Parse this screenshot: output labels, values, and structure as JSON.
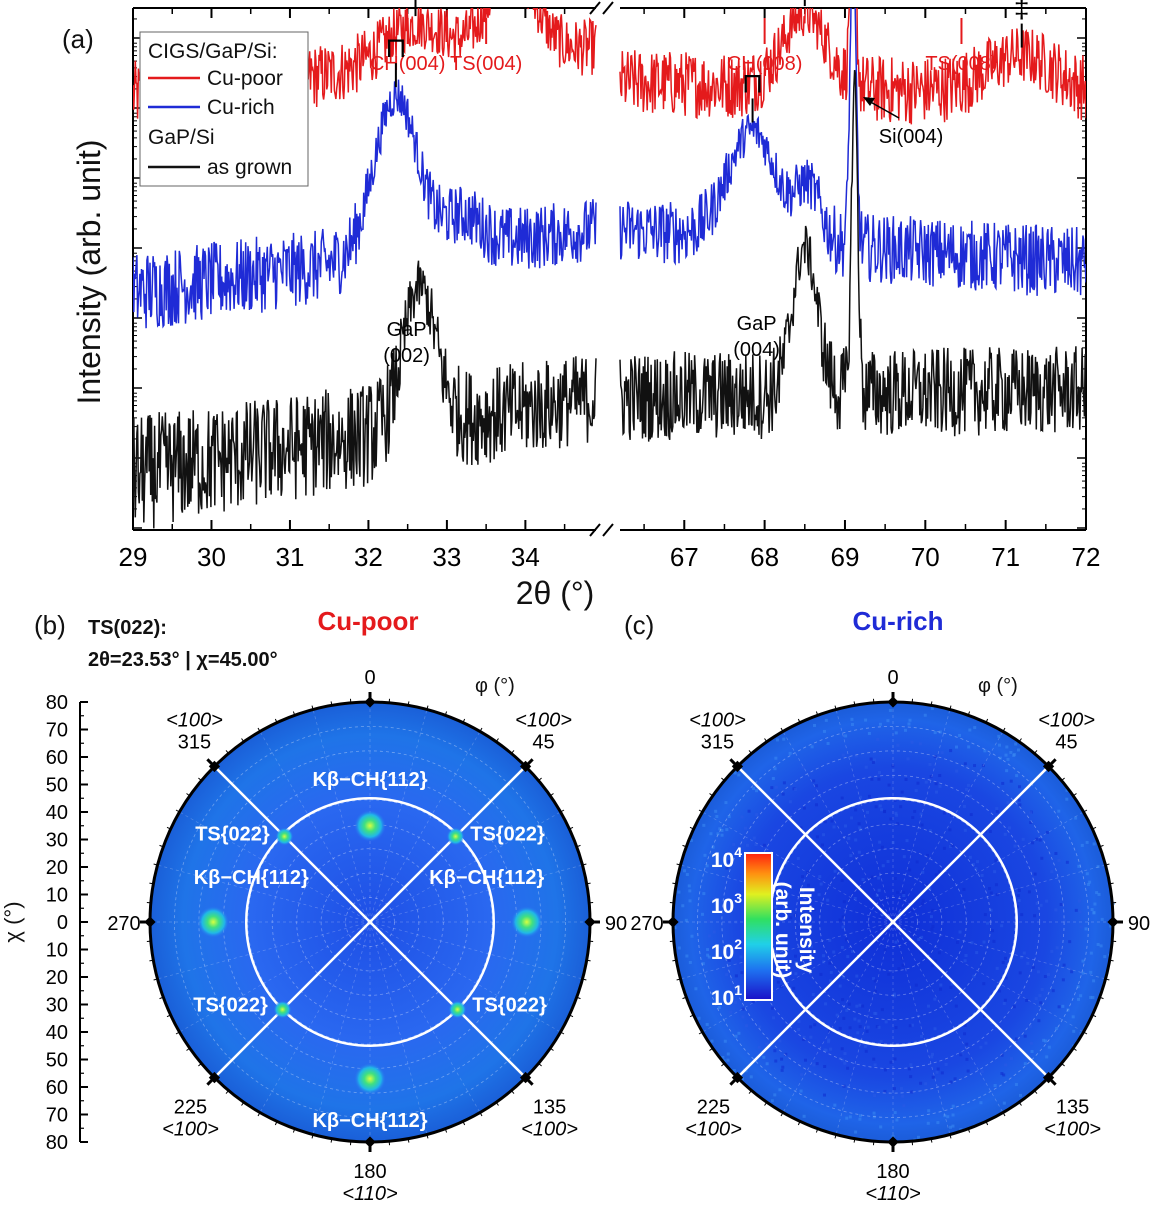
{
  "panels": {
    "a": {
      "label": "(a)"
    },
    "b": {
      "label": "(b)",
      "title": "Cu-poor",
      "note_line1": "TS(022):",
      "note_line2": "2θ=23.53° | χ=45.00°"
    },
    "c": {
      "label": "(c)",
      "title": "Cu-rich"
    }
  },
  "colors": {
    "cu_poor": "#e41a1c",
    "cu_rich": "#1f2bd6",
    "as_grown": "#111111"
  },
  "chart_data": [
    {
      "type": "line",
      "ylabel": "Intensity (arb. unit)",
      "xlabel": "2θ (°)",
      "x_scale": "broken",
      "x_segments": [
        [
          29,
          34.9
        ],
        [
          66.2,
          72
        ]
      ],
      "xticks_left": [
        "29",
        "30",
        "31",
        "32",
        "33",
        "34"
      ],
      "xticks_right": [
        "67",
        "68",
        "69",
        "70",
        "71",
        "72"
      ],
      "y_scale": "log",
      "legend": {
        "position": "top-left",
        "group1": "CIGS/GaP/Si:",
        "group2": "GaP/Si",
        "entries": [
          {
            "name": "Cu-poor",
            "color": "#e41a1c"
          },
          {
            "name": "Cu-rich",
            "color": "#1f2bd6"
          },
          {
            "name": "as grown",
            "color": "#111111"
          }
        ]
      },
      "reference_marks": [
        {
          "label": "CH(004)",
          "x": 32.5
        },
        {
          "label": "TS(004)",
          "x": 33.5
        },
        {
          "label": "CH(008)",
          "x": 68.0
        },
        {
          "label": "TS(008)",
          "x": 70.45
        }
      ],
      "annotations": [
        {
          "text": "GaP",
          "text2": "(002)",
          "x": 32.55
        },
        {
          "text": "GaP",
          "text2": "(004)",
          "x": 67.9
        },
        {
          "text": "Si(004)",
          "x": 69.1
        }
      ],
      "series": [
        {
          "name": "Cu-poor",
          "color": "#e41a1c",
          "base": 5.0,
          "noise": 0.28,
          "peaks": [
            [
              32.6,
              0.75,
              0.6
            ],
            [
              33.82,
              0.55,
              1.15
            ],
            [
              68.5,
              0.5,
              1.05
            ],
            [
              69.1,
              0.06,
              3.0
            ],
            [
              71.2,
              0.8,
              0.55
            ]
          ],
          "bg_left": [
            [
              29.0,
              0.0
            ],
            [
              34.9,
              0.7
            ]
          ],
          "bg_right": [
            [
              66.2,
              0.2
            ],
            [
              72.0,
              0.0
            ]
          ]
        },
        {
          "name": "Cu-rich",
          "color": "#1f2bd6",
          "base": 2.5,
          "noise": 0.3,
          "peaks": [
            [
              32.35,
              0.5,
              2.3
            ],
            [
              33.2,
              0.45,
              0.45
            ],
            [
              67.85,
              0.55,
              1.55
            ],
            [
              68.55,
              0.28,
              0.75
            ],
            [
              69.1,
              0.07,
              4.2
            ]
          ],
          "bg_left": [
            [
              29.0,
              -0.3
            ],
            [
              34.9,
              0.6
            ]
          ],
          "bg_right": [
            [
              66.2,
              0.6
            ],
            [
              72.0,
              0.1
            ]
          ]
        },
        {
          "name": "as grown",
          "color": "#111111",
          "base": 0.8,
          "noise": 0.35,
          "peaks": [
            [
              32.65,
              0.38,
              2.0
            ],
            [
              68.5,
              0.28,
              2.1
            ],
            [
              69.12,
              0.07,
              4.5
            ]
          ],
          "bg_left": [
            [
              29.0,
              -1.2
            ],
            [
              34.9,
              -0.1
            ]
          ],
          "bg_right": [
            [
              66.2,
              -0.1
            ],
            [
              72.0,
              0.0
            ]
          ]
        }
      ],
      "peak_markers": [
        {
          "series": "Cu-poor",
          "x": 32.6,
          "symbol": "⊓"
        },
        {
          "series": "Cu-poor",
          "x": 33.82,
          "symbol": "‡"
        },
        {
          "series": "Cu-poor",
          "x": 68.5,
          "symbol": "⊓"
        },
        {
          "series": "Cu-poor",
          "x": 71.2,
          "symbol": "‡"
        },
        {
          "series": "Cu-rich",
          "x": 32.35,
          "symbol": "⊓"
        },
        {
          "series": "Cu-rich",
          "x": 67.85,
          "symbol": "⊓"
        }
      ]
    },
    {
      "type": "heatmap",
      "projection": "polar",
      "title": "Cu-poor",
      "chi_axis": {
        "label": "χ (°)",
        "ticks": [
          "80",
          "70",
          "60",
          "50",
          "40",
          "30",
          "20",
          "10",
          "0",
          "10",
          "20",
          "30",
          "40",
          "50",
          "60",
          "70",
          "80"
        ]
      },
      "phi_label": "φ (°)",
      "phi_ticks": [
        {
          "angle": 0,
          "label": "0"
        },
        {
          "angle": 45,
          "label": "45",
          "sub": "<100>"
        },
        {
          "angle": 90,
          "label": "90"
        },
        {
          "angle": 135,
          "label": "135",
          "sub": "<100>"
        },
        {
          "angle": 180,
          "label": "180",
          "sub": "<110>"
        },
        {
          "angle": 225,
          "label": "225",
          "sub": "<100>"
        },
        {
          "angle": 270,
          "label": "270"
        },
        {
          "angle": 315,
          "label": "315",
          "sub": "<100>"
        }
      ],
      "circle_chi": 45,
      "spots": [
        {
          "phi": 0,
          "chi": 35,
          "label": "Kβ−CH{112}"
        },
        {
          "phi": 90,
          "chi": 57,
          "label": "Kβ−CH{112}"
        },
        {
          "phi": 180,
          "chi": 57,
          "label": "Kβ−CH{112}"
        },
        {
          "phi": 270,
          "chi": 57,
          "label": "Kβ−CH{112}"
        },
        {
          "phi": 45,
          "chi": 44,
          "label": "TS{022}"
        },
        {
          "phi": 135,
          "chi": 45,
          "label": "TS{022}"
        },
        {
          "phi": 225,
          "chi": 45,
          "label": "TS{022}"
        },
        {
          "phi": 315,
          "chi": 44,
          "label": "TS{022}"
        }
      ]
    },
    {
      "type": "heatmap",
      "projection": "polar",
      "title": "Cu-rich",
      "phi_label": "φ (°)",
      "phi_ticks": [
        {
          "angle": 0,
          "label": "0"
        },
        {
          "angle": 45,
          "label": "45",
          "sub": "<100>"
        },
        {
          "angle": 90,
          "label": "90"
        },
        {
          "angle": 135,
          "label": "135",
          "sub": "<100>"
        },
        {
          "angle": 180,
          "label": "180",
          "sub": "<110>"
        },
        {
          "angle": 225,
          "label": "225",
          "sub": "<100>"
        },
        {
          "angle": 270,
          "label": "270"
        },
        {
          "angle": 315,
          "label": "315",
          "sub": "<100>"
        }
      ],
      "circle_chi": 45,
      "spots": [],
      "colorbar": {
        "label": "Intensity",
        "label2": "(arb. unit)",
        "scale": "log",
        "ticks": [
          {
            "base": "10",
            "exp": "4"
          },
          {
            "base": "10",
            "exp": "3"
          },
          {
            "base": "10",
            "exp": "2"
          },
          {
            "base": "10",
            "exp": "1"
          }
        ]
      }
    }
  ]
}
